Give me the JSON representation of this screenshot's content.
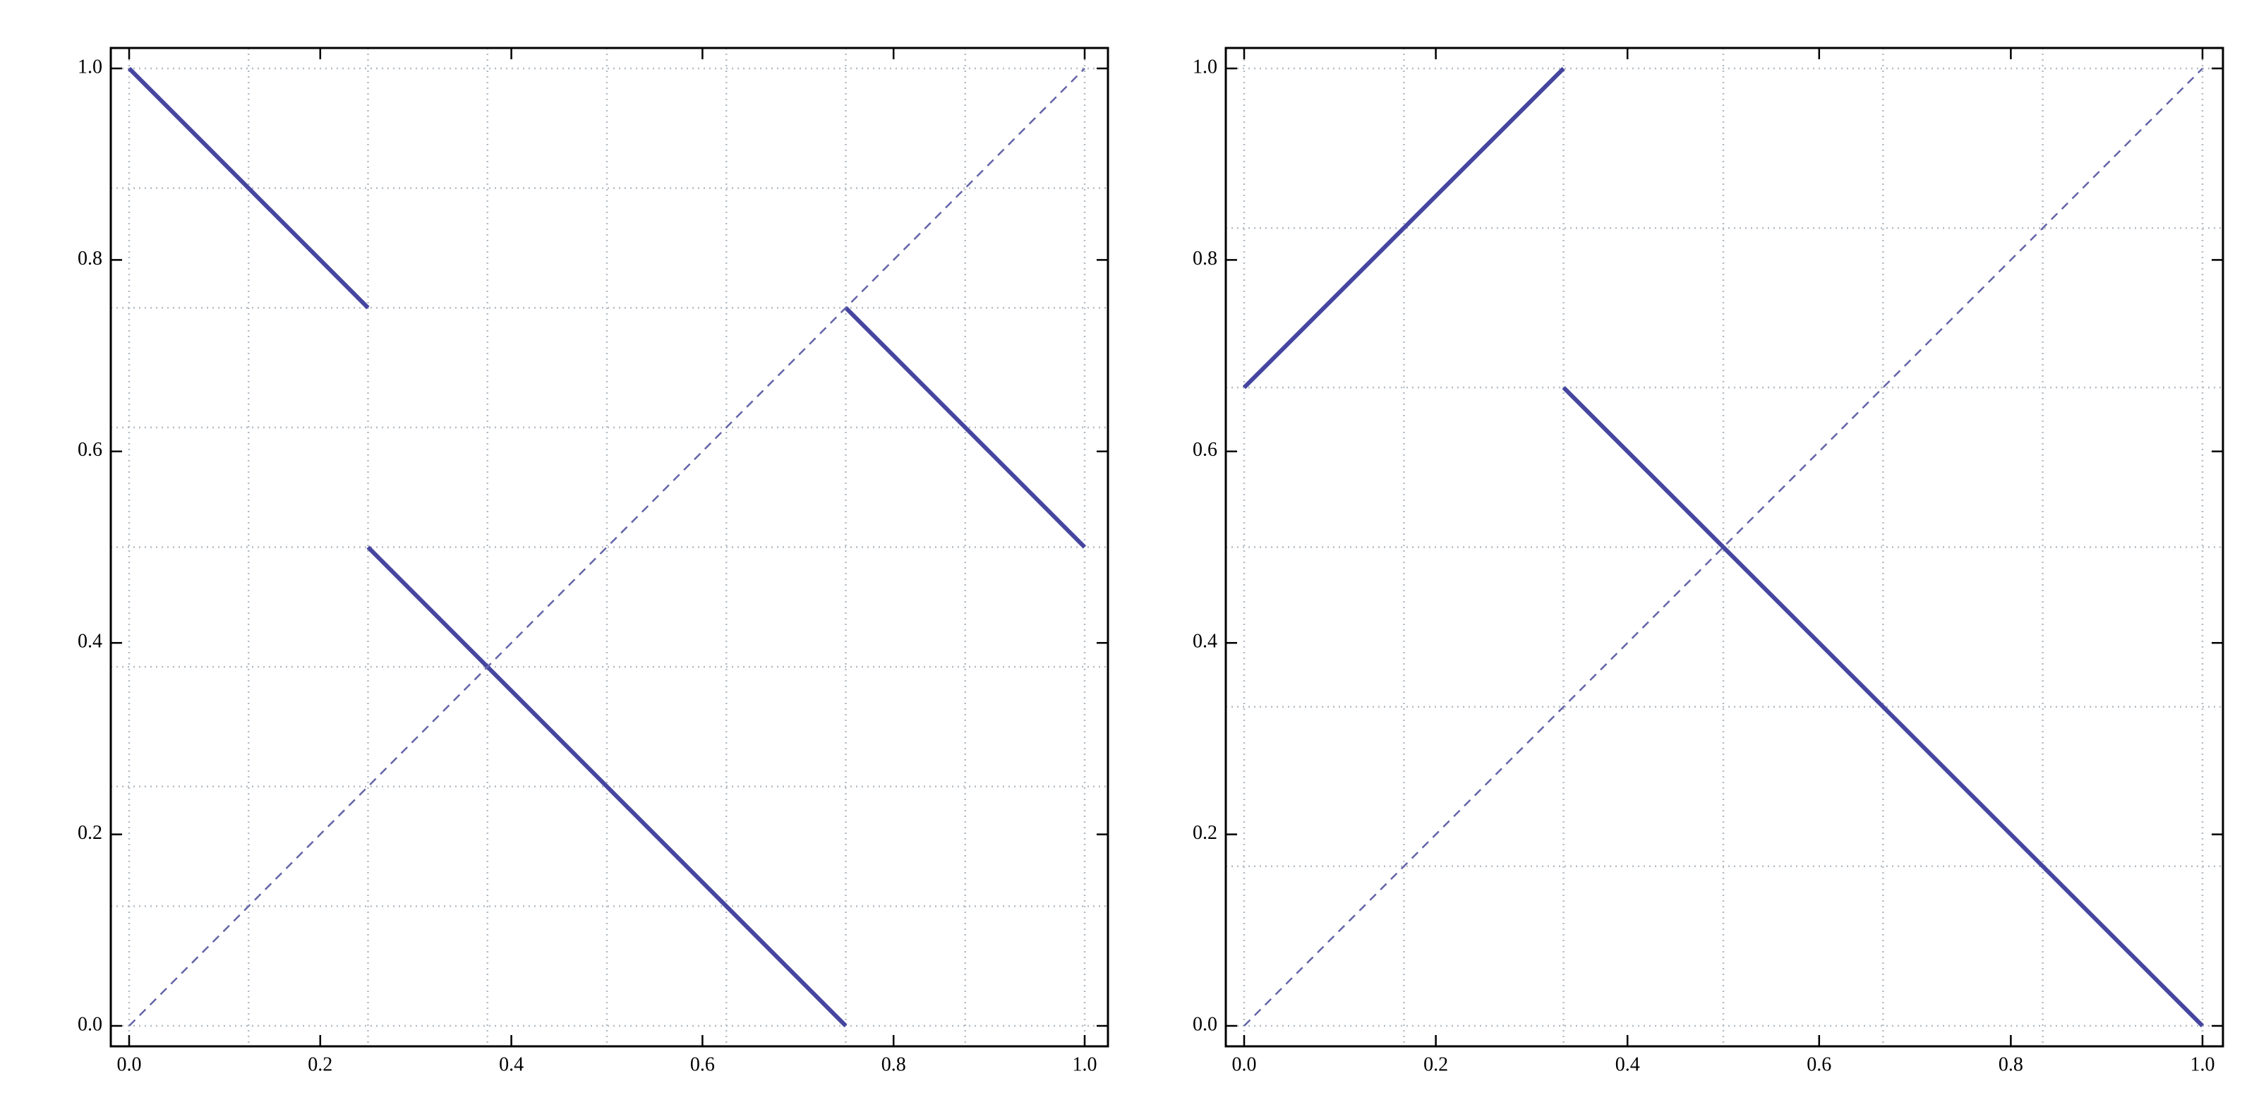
{
  "chart_data": [
    {
      "type": "line",
      "xlim": [
        0,
        1
      ],
      "ylim": [
        0,
        1
      ],
      "xticks": [
        {
          "value": 0,
          "label": "0.0"
        },
        0.2,
        0.4,
        0.6,
        0.8,
        {
          "value": 1,
          "label": "1.0"
        }
      ],
      "yticks": [
        {
          "value": 0,
          "label": "0.0"
        },
        0.2,
        0.4,
        0.6,
        0.8,
        {
          "value": 1,
          "label": "1.0"
        }
      ],
      "grid": true,
      "xgrid": [
        0,
        0.125,
        0.25,
        0.375,
        0.5,
        0.625,
        0.75,
        0.875,
        1
      ],
      "ygrid": [
        0,
        0.125,
        0.25,
        0.375,
        0.5,
        0.625,
        0.75,
        0.875,
        1
      ],
      "series": [
        {
          "color": "#4646a0",
          "style": "solid",
          "x": [
            0,
            0.25,
            0.25,
            0.25,
            0.75,
            0.75,
            0.75,
            1
          ],
          "values": [
            1,
            0.75,
            null,
            0.5,
            0,
            null,
            0.75,
            0.5
          ]
        },
        {
          "color": "#6464a8",
          "style": "dashed",
          "x": [
            0,
            1
          ],
          "values": [
            0,
            1
          ]
        }
      ]
    },
    {
      "type": "line",
      "xlim": [
        0,
        1
      ],
      "ylim": [
        0,
        1
      ],
      "xticks": [
        {
          "value": 0,
          "label": "0.0"
        },
        0.2,
        0.4,
        0.6,
        0.8,
        {
          "value": 1,
          "label": "1.0"
        }
      ],
      "yticks": [
        {
          "value": 0,
          "label": "0.0"
        },
        0.2,
        0.4,
        0.6,
        0.8,
        {
          "value": 1,
          "label": "1.0"
        }
      ],
      "grid": true,
      "xgrid": [
        0,
        0.1667,
        0.3333,
        0.5,
        0.6667,
        0.8333,
        1
      ],
      "ygrid": [
        0,
        0.1667,
        0.3333,
        0.5,
        0.6667,
        0.8333,
        1
      ],
      "series": [
        {
          "color": "#4646a0",
          "style": "solid",
          "x": [
            0,
            0.3333,
            0.3333,
            0.3333,
            1
          ],
          "values": [
            0.6667,
            1,
            null,
            0.6667,
            0
          ]
        },
        {
          "color": "#6464a8",
          "style": "dashed",
          "x": [
            0,
            1
          ],
          "values": [
            0,
            1
          ]
        }
      ]
    }
  ]
}
